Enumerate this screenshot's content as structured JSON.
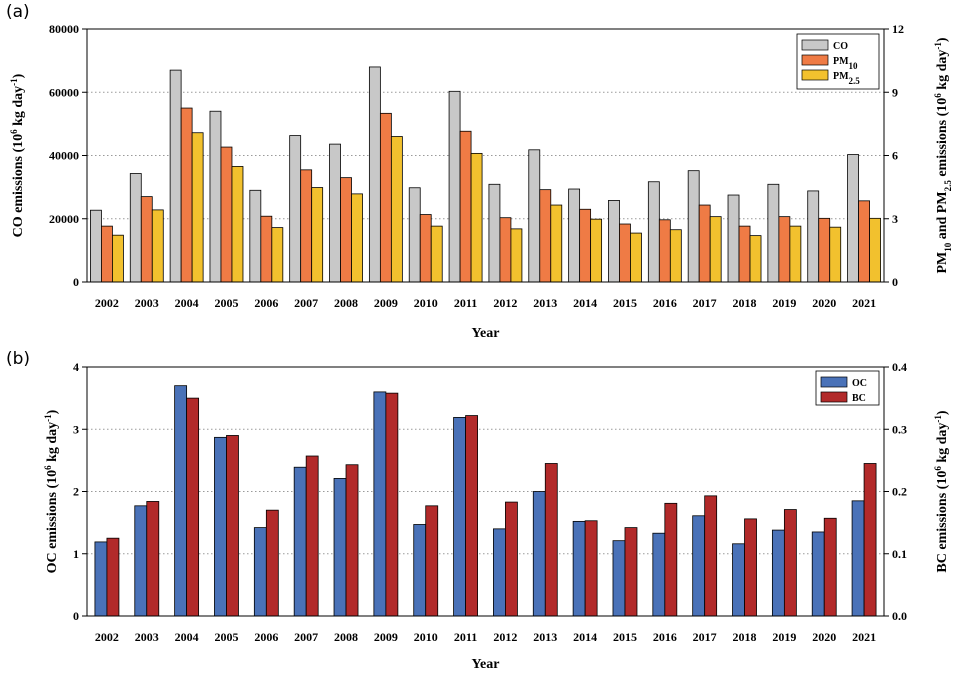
{
  "chart_data": [
    {
      "panel": "(a)",
      "type": "bar",
      "categories": [
        "2002",
        "2003",
        "2004",
        "2005",
        "2006",
        "2007",
        "2008",
        "2009",
        "2010",
        "2011",
        "2012",
        "2013",
        "2014",
        "2015",
        "2016",
        "2017",
        "2018",
        "2019",
        "2020",
        "2021"
      ],
      "series": [
        {
          "name": "CO",
          "axis": "left",
          "color": "#c8c8c8",
          "values": [
            22700,
            34300,
            67000,
            54000,
            29000,
            46300,
            43600,
            68000,
            29800,
            60300,
            30900,
            41800,
            29400,
            25800,
            31700,
            35200,
            27500,
            30900,
            28800,
            40300
          ]
        },
        {
          "name": "PM10",
          "name_main": "PM",
          "name_sub": "10",
          "axis": "right",
          "color": "#ef7b45",
          "values": [
            2.65,
            4.05,
            8.25,
            6.4,
            3.12,
            5.32,
            4.95,
            8.0,
            3.2,
            7.15,
            3.05,
            4.38,
            3.45,
            2.75,
            2.95,
            3.65,
            2.65,
            3.1,
            3.02,
            3.85
          ]
        },
        {
          "name": "PM2.5",
          "name_main": "PM",
          "name_sub": "2.5",
          "axis": "right",
          "color": "#f2c12e",
          "values": [
            2.22,
            3.42,
            7.08,
            5.48,
            2.58,
            4.48,
            4.18,
            6.9,
            2.65,
            6.1,
            2.52,
            3.65,
            2.98,
            2.32,
            2.48,
            3.1,
            2.2,
            2.65,
            2.6,
            3.02
          ]
        }
      ],
      "ylim_left": [
        0,
        80000
      ],
      "yticks_left": [
        "0",
        "20000",
        "40000",
        "60000",
        "80000"
      ],
      "ylim_right": [
        0,
        12
      ],
      "yticks_right": [
        "0",
        "3",
        "6",
        "9",
        "12"
      ],
      "xlabel": "Year",
      "ylabel_left": {
        "pre": "CO emissions (10",
        "sup1": "6",
        "mid": " kg day",
        "sup2": "-1",
        "post": ")"
      },
      "ylabel_right": {
        "pre": "PM",
        "sub1": "10",
        "mid1": " and PM",
        "sub2": "2.5",
        "mid2": " emissions (10",
        "sup1": "6",
        "mid3": " kg day",
        "sup2": "-1",
        "post": ")"
      },
      "legend_position": "top-right",
      "grid": "horizontal dotted"
    },
    {
      "panel": "(b)",
      "type": "bar",
      "categories": [
        "2002",
        "2003",
        "2004",
        "2005",
        "2006",
        "2007",
        "2008",
        "2009",
        "2010",
        "2011",
        "2012",
        "2013",
        "2014",
        "2015",
        "2016",
        "2017",
        "2018",
        "2019",
        "2020",
        "2021"
      ],
      "series": [
        {
          "name": "OC",
          "axis": "left",
          "color": "#4a72b8",
          "values": [
            1.19,
            1.77,
            3.7,
            2.87,
            1.42,
            2.39,
            2.21,
            3.6,
            1.47,
            3.19,
            1.4,
            2.0,
            1.52,
            1.21,
            1.33,
            1.61,
            1.16,
            1.38,
            1.35,
            1.85
          ]
        },
        {
          "name": "BC",
          "axis": "right",
          "color": "#b22a2a",
          "values": [
            0.125,
            0.184,
            0.35,
            0.29,
            0.17,
            0.257,
            0.243,
            0.358,
            0.177,
            0.322,
            0.183,
            0.245,
            0.153,
            0.142,
            0.181,
            0.193,
            0.156,
            0.171,
            0.157,
            0.245
          ]
        }
      ],
      "ylim_left": [
        0,
        4
      ],
      "yticks_left": [
        "0",
        "1",
        "2",
        "3",
        "4"
      ],
      "ylim_right": [
        0,
        0.4
      ],
      "yticks_right": [
        "0.0",
        "0.1",
        "0.2",
        "0.3",
        "0.4"
      ],
      "xlabel": "Year",
      "ylabel_left": {
        "pre": "OC emissions (10",
        "sup1": "6",
        "mid": " kg day",
        "sup2": "-1",
        "post": ")"
      },
      "ylabel_right": {
        "pre": "BC emissions (10",
        "sup1": "6",
        "mid": " kg day",
        "sup2": "-1",
        "post": ")"
      },
      "legend_position": "top-right",
      "grid": "horizontal dotted"
    }
  ]
}
